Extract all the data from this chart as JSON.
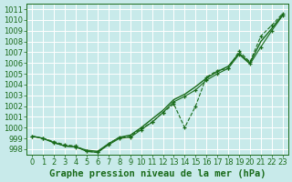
{
  "bg_color": "#c8eaea",
  "grid_color": "#ffffff",
  "line_color": "#1a6b1a",
  "title": "Graphe pression niveau de la mer (hPa)",
  "title_fontsize": 7.5,
  "tick_fontsize": 6,
  "xlim": [
    -0.5,
    23.5
  ],
  "ylim": [
    997.5,
    1011.5
  ],
  "yticks": [
    998,
    999,
    1000,
    1001,
    1002,
    1003,
    1004,
    1005,
    1006,
    1007,
    1008,
    1009,
    1010,
    1011
  ],
  "xticks": [
    0,
    1,
    2,
    3,
    4,
    5,
    6,
    7,
    8,
    9,
    10,
    11,
    12,
    13,
    14,
    15,
    16,
    17,
    18,
    19,
    20,
    21,
    22,
    23
  ],
  "s1_x": [
    0,
    1,
    2,
    3,
    4,
    5,
    6,
    7,
    8,
    9,
    10,
    11,
    12,
    13,
    14,
    15,
    16,
    17,
    18,
    19,
    20,
    21,
    22,
    23
  ],
  "s1_y": [
    999.2,
    999.0,
    998.7,
    998.4,
    998.3,
    997.8,
    997.7,
    998.5,
    999.0,
    999.1,
    999.9,
    1000.5,
    1001.5,
    1002.5,
    1000.0,
    1001.5,
    1004.5,
    1005.2,
    1005.5,
    1007.0,
    1005.9,
    1008.5,
    1009.5,
    1010.5
  ],
  "s2_x": [
    0,
    1,
    2,
    3,
    4,
    5,
    6,
    7,
    8,
    9,
    10,
    11,
    12,
    13,
    14,
    15,
    16,
    17,
    18,
    19,
    20,
    21,
    22,
    23
  ],
  "s2_y": [
    999.2,
    999.0,
    998.6,
    998.4,
    998.3,
    998.1,
    998.0,
    998.5,
    999.1,
    999.3,
    1000.1,
    1001.0,
    1001.8,
    1002.8,
    1003.3,
    1004.0,
    1004.7,
    1005.3,
    1005.8,
    1006.9,
    1006.0,
    1008.0,
    1009.3,
    1010.6
  ],
  "s3_x": [
    0,
    1,
    2,
    3,
    4,
    5,
    6,
    7,
    8,
    9,
    10,
    11,
    12,
    13,
    14,
    15,
    16,
    17,
    18,
    19,
    20,
    21,
    22,
    23
  ],
  "s3_y": [
    999.2,
    999.0,
    998.6,
    998.3,
    998.2,
    997.8,
    997.7,
    998.5,
    999.0,
    999.2,
    999.9,
    1000.6,
    1001.5,
    1002.5,
    1003.0,
    1003.5,
    1004.4,
    1005.0,
    1005.5,
    1006.8,
    1006.0,
    1007.5,
    1009.0,
    1010.4
  ]
}
